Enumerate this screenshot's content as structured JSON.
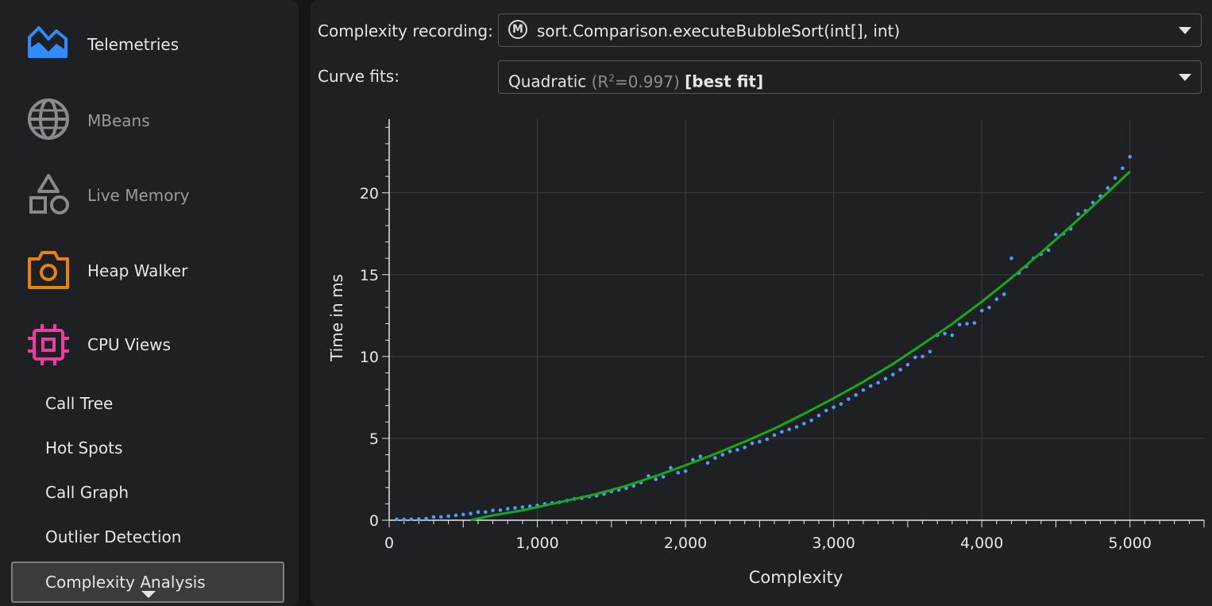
{
  "sidebar": {
    "items": [
      {
        "label": "Telemetries",
        "icon": "telemetries-icon",
        "color": "#2f8cff"
      },
      {
        "label": "MBeans",
        "icon": "globe-icon",
        "color": "#8a8a8a"
      },
      {
        "label": "Live Memory",
        "icon": "shapes-icon",
        "color": "#8a8a8a"
      },
      {
        "label": "Heap Walker",
        "icon": "camera-icon",
        "color": "#e8820c"
      },
      {
        "label": "CPU Views",
        "icon": "cpu-chip-icon",
        "color": "#e83fa0"
      }
    ],
    "sub_items": [
      "Call Tree",
      "Hot Spots",
      "Call Graph",
      "Outlier Detection"
    ],
    "selected_item": "Complexity Analysis"
  },
  "header": {
    "recording_label": "Complexity recording:",
    "recording_icon_letter": "M",
    "recording_value": "sort.Comparison.executeBubbleSort(int[], int)",
    "fits_label": "Curve fits:",
    "fit_name": "Quadratic",
    "fit_r_open": "(R",
    "fit_r_sup": "2",
    "fit_r_close": "=0.997)",
    "fit_best": "[best fit]"
  },
  "colors": {
    "points": "#4d9bff",
    "fit_line": "#15a818",
    "grid": "#3c3d41",
    "axis": "#e6e6e6"
  },
  "chart_data": {
    "type": "scatter",
    "xlabel": "Complexity",
    "ylabel": "Time in ms",
    "xlim": [
      0,
      5500
    ],
    "ylim": [
      0,
      24.5
    ],
    "x_ticks": [
      0,
      1000,
      2000,
      3000,
      4000,
      5000
    ],
    "x_tick_labels": [
      "0",
      "1,000",
      "2,000",
      "3,000",
      "4,000",
      "5,000"
    ],
    "y_ticks": [
      0,
      5,
      10,
      15,
      20
    ],
    "y_tick_labels": [
      "0",
      "5",
      "10",
      "15",
      "20"
    ],
    "grid": true,
    "series": [
      {
        "kind": "points",
        "x": [
          50,
          100,
          150,
          200,
          250,
          300,
          350,
          400,
          450,
          500,
          550,
          600,
          650,
          700,
          750,
          800,
          850,
          900,
          950,
          1000,
          1050,
          1100,
          1150,
          1200,
          1250,
          1300,
          1350,
          1400,
          1450,
          1500,
          1550,
          1600,
          1650,
          1700,
          1750,
          1800,
          1850,
          1900,
          1950,
          2000,
          2050,
          2100,
          2150,
          2200,
          2250,
          2300,
          2350,
          2400,
          2450,
          2500,
          2550,
          2600,
          2650,
          2700,
          2750,
          2800,
          2850,
          2900,
          2950,
          3000,
          3050,
          3100,
          3150,
          3200,
          3250,
          3300,
          3350,
          3400,
          3450,
          3500,
          3550,
          3600,
          3650,
          3700,
          3750,
          3800,
          3850,
          3900,
          3950,
          4000,
          4050,
          4100,
          4150,
          4200,
          4250,
          4300,
          4350,
          4400,
          4450,
          4500,
          4550,
          4600,
          4650,
          4700,
          4750,
          4800,
          4850,
          4900,
          4950,
          5000
        ],
        "y": [
          0.05,
          0.05,
          0.06,
          0.07,
          0.1,
          0.2,
          0.2,
          0.25,
          0.3,
          0.35,
          0.4,
          0.5,
          0.5,
          0.6,
          0.62,
          0.7,
          0.75,
          0.8,
          0.85,
          0.9,
          1.0,
          1.05,
          1.1,
          1.2,
          1.3,
          1.35,
          1.45,
          1.5,
          1.6,
          1.75,
          1.85,
          1.95,
          2.1,
          2.3,
          2.7,
          2.5,
          2.65,
          3.2,
          2.9,
          3.0,
          3.7,
          3.9,
          3.5,
          3.8,
          4.0,
          4.2,
          4.3,
          4.45,
          4.7,
          4.8,
          4.95,
          5.2,
          5.4,
          5.55,
          5.7,
          5.9,
          6.1,
          6.4,
          6.7,
          6.9,
          7.1,
          7.4,
          7.65,
          7.95,
          8.2,
          8.4,
          8.65,
          8.9,
          9.2,
          9.5,
          9.95,
          10.0,
          10.3,
          11.3,
          11.4,
          11.3,
          11.95,
          12.0,
          12.05,
          12.8,
          13.0,
          13.5,
          13.8,
          16.0,
          15.1,
          15.5,
          16.0,
          16.25,
          16.5,
          17.45,
          17.5,
          17.8,
          18.7,
          18.9,
          19.4,
          19.8,
          20.3,
          20.9,
          21.5,
          22.2
        ]
      },
      {
        "kind": "fit-line",
        "name": "Quadratic",
        "x": [
          550,
          600,
          700,
          800,
          900,
          1000,
          1200,
          1400,
          1600,
          1800,
          2000,
          2200,
          2400,
          2600,
          2800,
          3000,
          3200,
          3400,
          3600,
          3800,
          4000,
          4200,
          4400,
          4600,
          4800,
          5000
        ],
        "y": [
          0.0,
          0.1,
          0.3,
          0.45,
          0.6,
          0.8,
          1.2,
          1.6,
          2.1,
          2.7,
          3.35,
          4.05,
          4.8,
          5.6,
          6.5,
          7.45,
          8.45,
          9.55,
          10.75,
          12.0,
          13.35,
          14.8,
          16.35,
          17.95,
          19.6,
          21.3
        ]
      }
    ]
  }
}
